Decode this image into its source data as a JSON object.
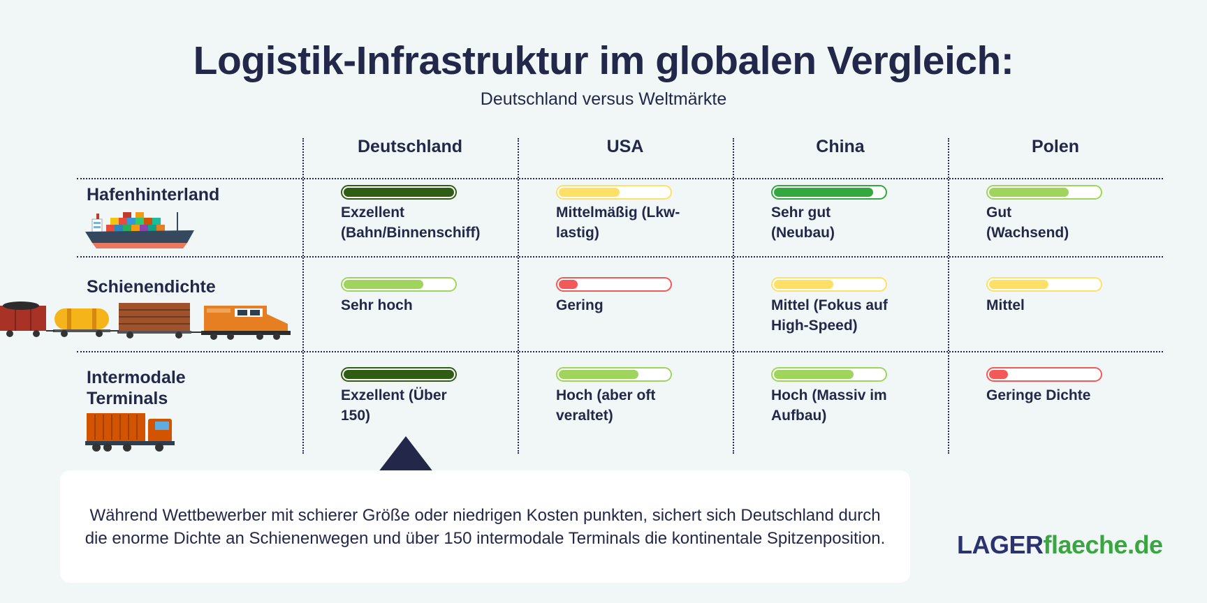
{
  "header": {
    "title": "Logistik-Infrastruktur im globalen Vergleich:",
    "subtitle": "Deutschland versus Weltmärkte"
  },
  "columns": [
    "Deutschland",
    "USA",
    "China",
    "Polen"
  ],
  "rows": [
    {
      "label": "Hafenhinterland",
      "icon": "cargo-ship-icon",
      "cells": [
        {
          "text": "Exzellent (Bahn/Binnenschiff)",
          "level": 1.0,
          "color": "#2f5d14"
        },
        {
          "text": "Mittelmäßig (Lkw-lastig)",
          "level": 0.55,
          "color": "#ffe066"
        },
        {
          "text": "Sehr gut (Neubau)",
          "level": 0.9,
          "color": "#32a83e"
        },
        {
          "text": "Gut (Wachsend)",
          "level": 0.72,
          "color": "#9fd55c"
        }
      ]
    },
    {
      "label": "Schienendichte",
      "icon": "freight-train-icon",
      "cells": [
        {
          "text": "Sehr hoch",
          "level": 0.72,
          "color": "#9fd55c"
        },
        {
          "text": "Gering",
          "level": 0.17,
          "color": "#f25a5a"
        },
        {
          "text": "Mittel (Fokus auf High-Speed)",
          "level": 0.54,
          "color": "#ffe066"
        },
        {
          "text": "Mittel",
          "level": 0.54,
          "color": "#ffe066"
        }
      ]
    },
    {
      "label": "Intermodale Terminals",
      "icon": "container-truck-icon",
      "cells": [
        {
          "text": "Exzellent (Über 150)",
          "level": 1.0,
          "color": "#2f5d14"
        },
        {
          "text": "Hoch (aber oft veraltet)",
          "level": 0.72,
          "color": "#9fd55c"
        },
        {
          "text": "Hoch (Massiv im Aufbau)",
          "level": 0.72,
          "color": "#9fd55c"
        },
        {
          "text": "Geringe Dichte",
          "level": 0.17,
          "color": "#f25a5a"
        }
      ]
    }
  ],
  "info": {
    "text": "Während Wettbewerber mit schierer Größe oder niedrigen Kosten punkten, sichert sich Deutschland durch die enorme Dichte an Schienenwegen und über 150 intermodale Terminals die kontinentale Spitzenposition."
  },
  "logo": {
    "part1": "LAGER",
    "part2": "flaeche.de"
  }
}
